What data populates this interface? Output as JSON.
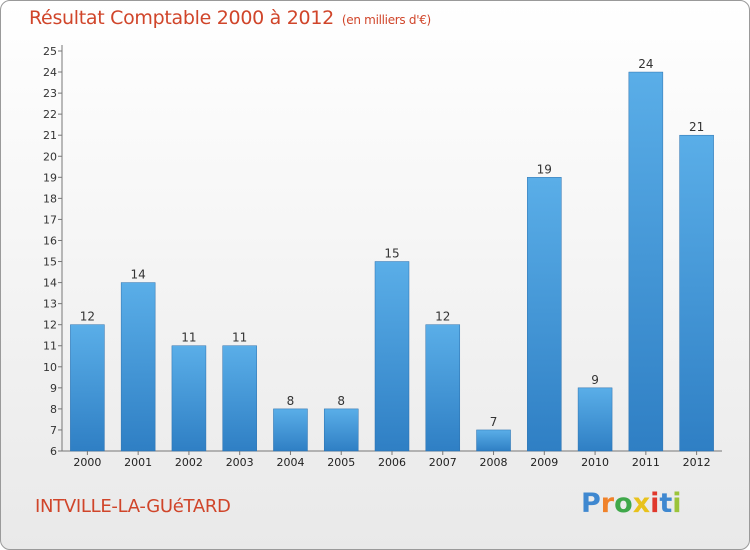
{
  "title": "Résultat Comptable 2000 à 2012",
  "unit": "(en milliers d'€)",
  "place": "INTVILLE-LA-GUéTARD",
  "logo": {
    "text": "Proxiti",
    "letter_colors": [
      "#3f88d0",
      "#f0822a",
      "#3fa84a",
      "#e8c21c",
      "#e0382c",
      "#3f88d0",
      "#9bc43a"
    ]
  },
  "colors": {
    "bar_light": "#5aaee8",
    "bar_dark": "#2f7fc4",
    "text_accent": "#d0452a"
  },
  "chart_data": {
    "type": "bar",
    "categories": [
      "2000",
      "2001",
      "2002",
      "2003",
      "2004",
      "2005",
      "2006",
      "2007",
      "2008",
      "2009",
      "2010",
      "2011",
      "2012"
    ],
    "values": [
      12,
      14,
      11,
      11,
      8,
      8,
      15,
      12,
      7,
      19,
      9,
      24,
      21
    ],
    "ylim": [
      6,
      25
    ],
    "yticks": [
      6,
      7,
      8,
      9,
      10,
      11,
      12,
      13,
      14,
      15,
      16,
      17,
      18,
      19,
      20,
      21,
      22,
      23,
      24,
      25
    ],
    "grid": false,
    "legend": "none"
  }
}
